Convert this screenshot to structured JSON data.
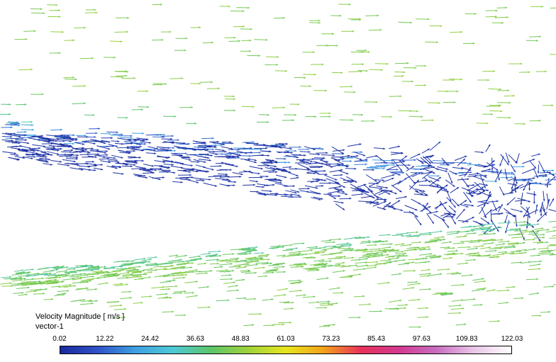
{
  "legend": {
    "title": "Velocity Magnitude [ m/s ]",
    "name": "vector-1"
  },
  "chart_data": {
    "type": "vector-field",
    "variable": "Velocity Magnitude",
    "units": "m/s",
    "range": [
      0.02,
      122.03
    ],
    "colorbar_ticks": [
      "0.02",
      "12.22",
      "24.42",
      "36.63",
      "48.83",
      "61.03",
      "73.23",
      "85.43",
      "97.63",
      "109.83",
      "122.03"
    ],
    "colormap": [
      "#1a2a9c",
      "#2f52c8",
      "#3fa0e0",
      "#4ec9d6",
      "#5cc56a",
      "#9fd23a",
      "#e6e61e",
      "#f3a21a",
      "#e8315a",
      "#d2398f",
      "#c86cc0",
      "#e9c6e6",
      "#ffffff"
    ]
  }
}
